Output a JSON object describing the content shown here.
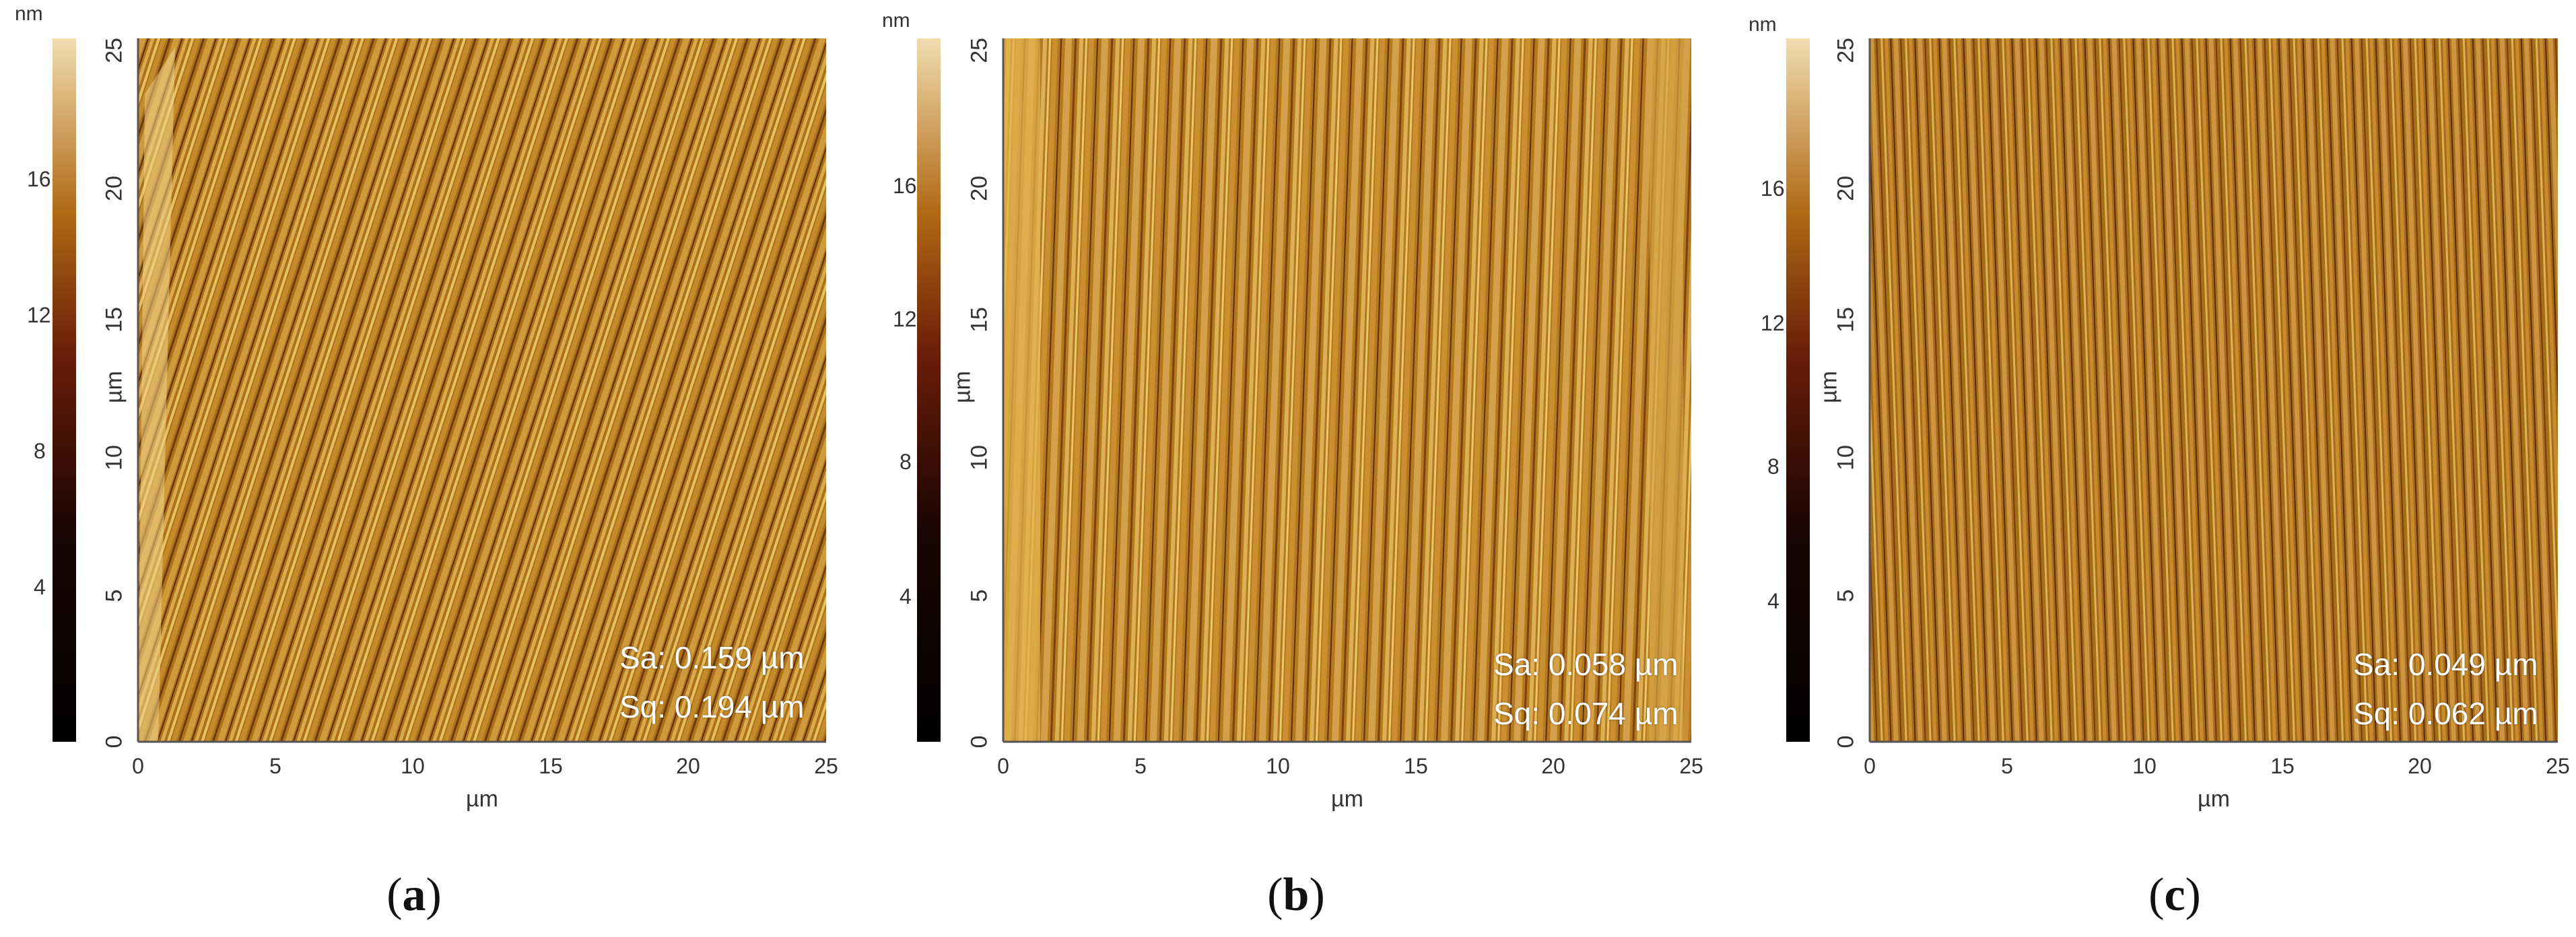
{
  "colors": {
    "afm_light": "#e8c46a",
    "afm_mid": "#b87a1e",
    "afm_dark": "#3a1d04",
    "stat_text": "#ffffff"
  },
  "colorbar": {
    "unit": "nm"
  },
  "axis": {
    "x_label": "µm",
    "y_label": "µm",
    "ticks": [
      "0",
      "5",
      "10",
      "15",
      "20",
      "25"
    ]
  },
  "panels": [
    {
      "caption_open": "(",
      "caption_letter": "a",
      "caption_close": ")",
      "colorbar_ticks": [
        "16",
        "12",
        "8",
        "4"
      ],
      "sa": "Sa: 0.159 µm",
      "sq": "Sq: 0.194 µm"
    },
    {
      "caption_open": "(",
      "caption_letter": "b",
      "caption_close": ")",
      "colorbar_ticks": [
        "16",
        "12",
        "8",
        "4"
      ],
      "sa": "Sa: 0.058 µm",
      "sq": "Sq: 0.074 µm"
    },
    {
      "caption_open": "(",
      "caption_letter": "c",
      "caption_close": ")",
      "colorbar_ticks": [
        "16",
        "12",
        "8",
        "4"
      ],
      "sa": "Sa: 0.049 µm",
      "sq": "Sq: 0.062 µm"
    }
  ]
}
